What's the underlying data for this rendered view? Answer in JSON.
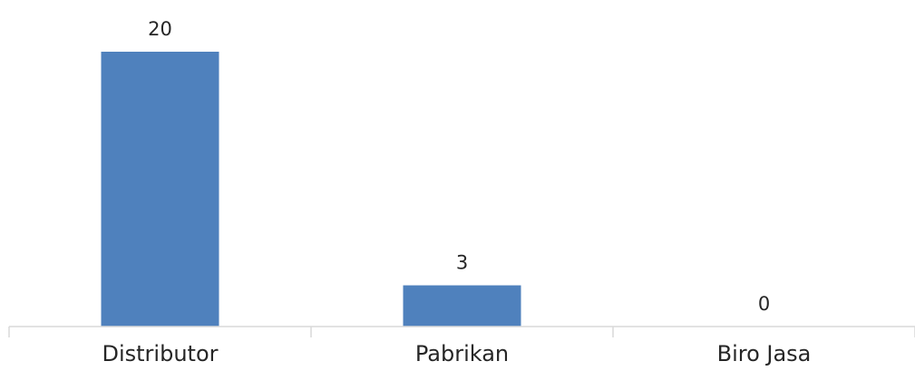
{
  "chart_data": {
    "type": "bar",
    "categories": [
      "Distributor",
      "Pabrikan",
      "Biro Jasa"
    ],
    "values": [
      20,
      3,
      0
    ],
    "data_labels": [
      "20",
      "3",
      "0"
    ],
    "title": "",
    "xlabel": "",
    "ylabel": "",
    "ylim": [
      0,
      20
    ],
    "grid": false,
    "legend": "none",
    "bar_color": "#4f81bd"
  }
}
